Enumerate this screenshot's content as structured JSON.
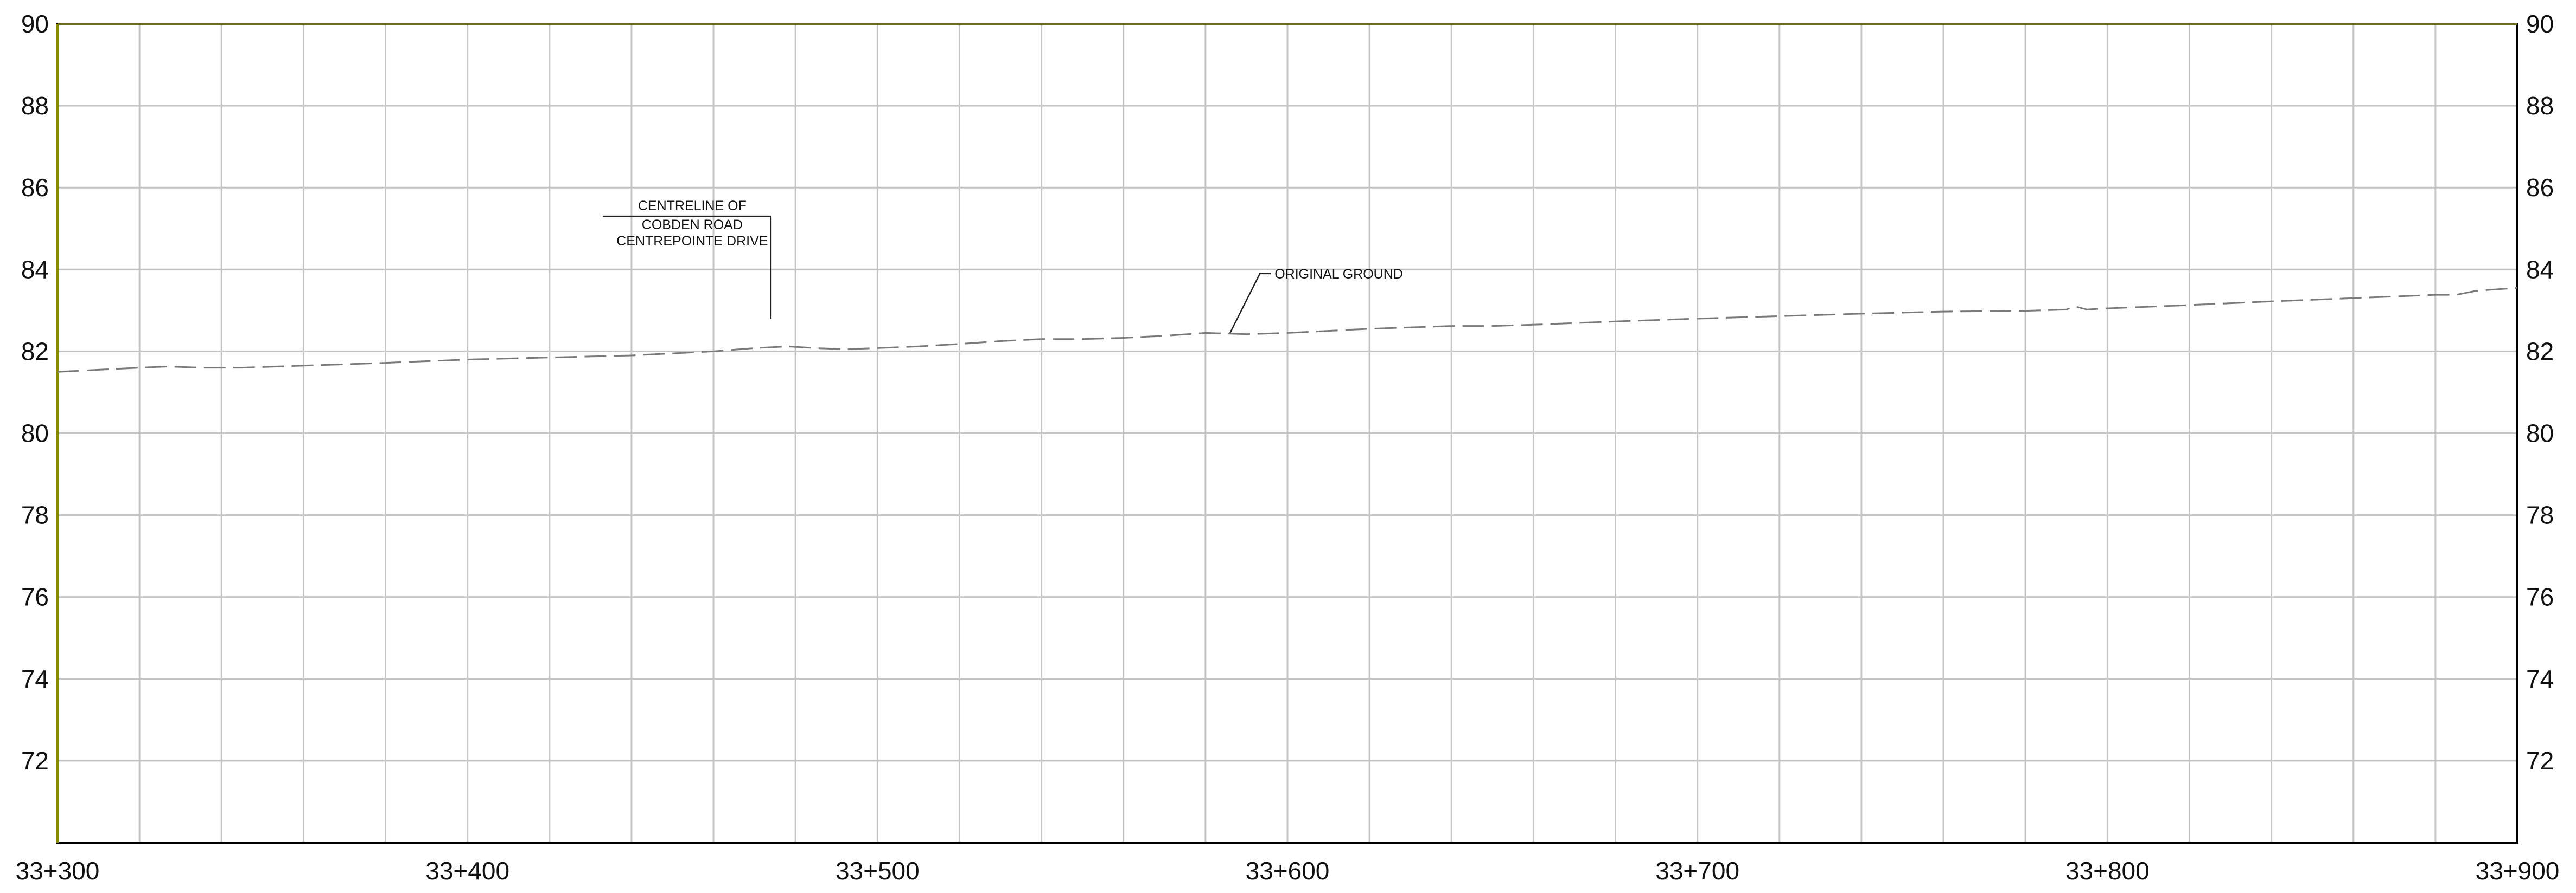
{
  "chart_data": {
    "type": "line",
    "title": "",
    "xlabel": "",
    "ylabel": "",
    "x_tick_labels": [
      "33+300",
      "33+400",
      "33+500",
      "33+600",
      "33+700",
      "33+800",
      "33+900"
    ],
    "x_ticks": [
      33300,
      33400,
      33500,
      33600,
      33700,
      33800,
      33900
    ],
    "y_ticks": [
      72,
      74,
      76,
      78,
      80,
      82,
      84,
      86,
      88,
      90
    ],
    "y_tick_labels": [
      "72",
      "74",
      "76",
      "78",
      "80",
      "82",
      "84",
      "86",
      "88",
      "90"
    ],
    "xlim": [
      33300,
      33900
    ],
    "ylim": [
      70,
      90
    ],
    "x_grid_step": 20,
    "y_grid_step": 2,
    "grid": true,
    "series": [
      {
        "name": "ORIGINAL GROUND",
        "style": "dashed",
        "color": "#7a7a7a",
        "x": [
          33300,
          33310,
          33320,
          33327,
          33335,
          33345,
          33360,
          33380,
          33400,
          33420,
          33440,
          33460,
          33470,
          33478,
          33485,
          33492,
          33500,
          33510,
          33520,
          33530,
          33540,
          33550,
          33560,
          33570,
          33580,
          33590,
          33600,
          33620,
          33640,
          33650,
          33660,
          33680,
          33700,
          33720,
          33740,
          33760,
          33780,
          33790,
          33792,
          33795,
          33800,
          33820,
          33840,
          33860,
          33880,
          33885,
          33890,
          33900
        ],
        "y": [
          81.5,
          81.55,
          81.6,
          81.63,
          81.6,
          81.6,
          81.65,
          81.72,
          81.8,
          81.85,
          81.9,
          82.0,
          82.08,
          82.12,
          82.08,
          82.05,
          82.08,
          82.12,
          82.18,
          82.25,
          82.3,
          82.3,
          82.33,
          82.38,
          82.45,
          82.42,
          82.45,
          82.55,
          82.62,
          82.62,
          82.65,
          82.73,
          82.8,
          82.86,
          82.92,
          82.97,
          82.99,
          83.02,
          83.1,
          83.02,
          83.05,
          83.13,
          83.22,
          83.3,
          83.38,
          83.38,
          83.48,
          83.55
        ]
      }
    ],
    "annotations": [
      {
        "lines": [
          "CENTRELINE OF",
          "COBDEN ROAD",
          "CENTREPOINTE DRIVE"
        ],
        "x": 33474,
        "leader_to_y": 82.8,
        "leader_from_y": 85.3
      },
      {
        "text": "ORIGINAL GROUND",
        "x": 33586,
        "leader_to_y": 82.45,
        "leader_from_y": 83.9
      }
    ]
  }
}
